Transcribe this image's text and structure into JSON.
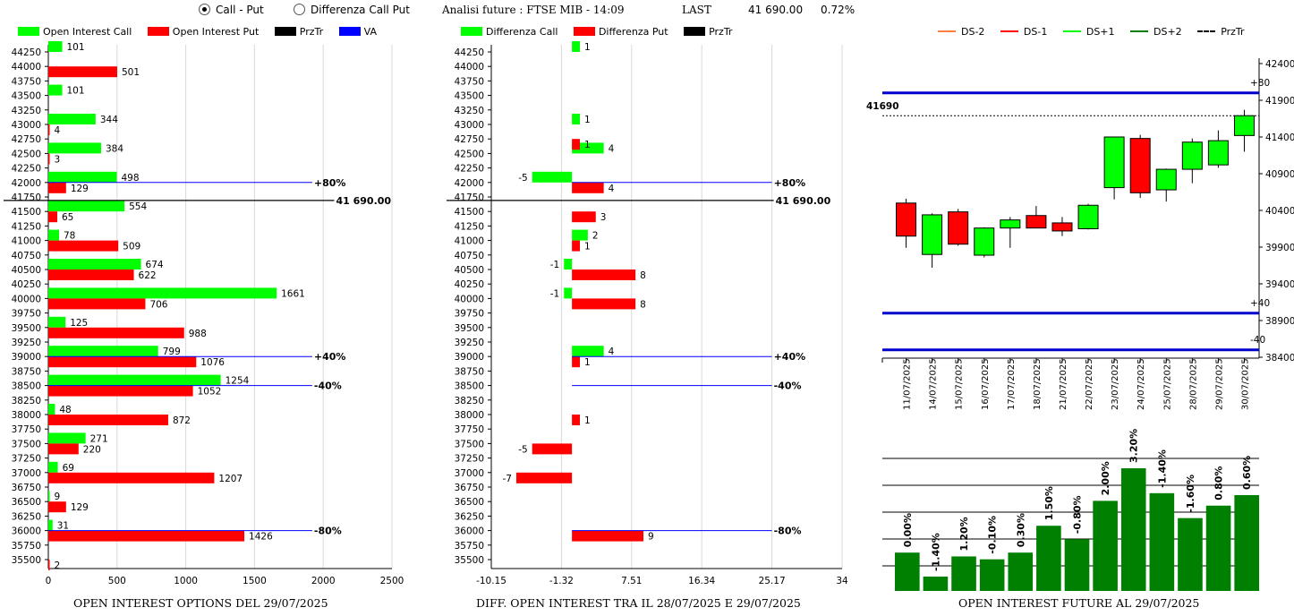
{
  "header": {
    "radio_call_put": "Call - Put",
    "radio_diff": "Differenza Call Put",
    "analysis_title": "Analisi future : FTSE MIB - 14:09",
    "last_label": "LAST",
    "last_value": "41 690.00",
    "last_pct": "0.72%"
  },
  "legend1": [
    {
      "label": "Open Interest Call",
      "color": "#00ff00"
    },
    {
      "label": "Open Interest Put",
      "color": "#ff0000"
    },
    {
      "label": "PrzTr",
      "color": "#000000"
    },
    {
      "label": "VA",
      "color": "#0000ff"
    }
  ],
  "legend2": [
    {
      "label": "Differenza Call",
      "color": "#00ff00"
    },
    {
      "label": "Differenza Put",
      "color": "#ff0000"
    },
    {
      "label": "PrzTr",
      "color": "#000000"
    }
  ],
  "legend3": [
    {
      "label": "DS-2",
      "color": "#ff8040",
      "style": "solid"
    },
    {
      "label": "DS-1",
      "color": "#ff0000",
      "style": "solid"
    },
    {
      "label": "DS+1",
      "color": "#00ff00",
      "style": "solid"
    },
    {
      "label": "DS+2",
      "color": "#008000",
      "style": "solid"
    },
    {
      "label": "PrzTr",
      "color": "#000000",
      "style": "dashed"
    }
  ],
  "footers": {
    "chart1": "OPEN INTEREST OPTIONS DEL 29/07/2025",
    "chart2": "DIFF. OPEN INTEREST TRA IL 28/07/2025 E 29/07/2025",
    "chart3": "OPEN INTEREST FUTURE AL 29/07/2025"
  },
  "chart_data": [
    {
      "type": "bar",
      "orientation": "horizontal",
      "strikes": [
        44250,
        44000,
        43750,
        43500,
        43250,
        43000,
        42750,
        42500,
        42250,
        42000,
        41750,
        41500,
        41250,
        41000,
        40750,
        40500,
        40250,
        40000,
        39750,
        39500,
        39250,
        39000,
        38750,
        38500,
        38250,
        38000,
        37750,
        37500,
        37250,
        37000,
        36750,
        36500,
        36250,
        36000,
        35750,
        35500
      ],
      "call": [
        {
          "strike": 44250,
          "value": 101
        },
        {
          "strike": 43500,
          "value": 101
        },
        {
          "strike": 43000,
          "value": 344
        },
        {
          "strike": 42500,
          "value": 384
        },
        {
          "strike": 42000,
          "value": 498
        },
        {
          "strike": 41500,
          "value": 554
        },
        {
          "strike": 41000,
          "value": 78
        },
        {
          "strike": 40500,
          "value": 674
        },
        {
          "strike": 40000,
          "value": 1661
        },
        {
          "strike": 39500,
          "value": 125
        },
        {
          "strike": 39000,
          "value": 799
        },
        {
          "strike": 38500,
          "value": 1254
        },
        {
          "strike": 38000,
          "value": 48
        },
        {
          "strike": 37500,
          "value": 271
        },
        {
          "strike": 37000,
          "value": 69
        },
        {
          "strike": 36500,
          "value": 9
        },
        {
          "strike": 36000,
          "value": 31
        }
      ],
      "put": [
        {
          "strike": 44000,
          "value": 501
        },
        {
          "strike": 43000,
          "value": 4
        },
        {
          "strike": 42500,
          "value": 3
        },
        {
          "strike": 42000,
          "value": 129
        },
        {
          "strike": 41500,
          "value": 65
        },
        {
          "strike": 41000,
          "value": 509
        },
        {
          "strike": 40500,
          "value": 622
        },
        {
          "strike": 40000,
          "value": 706
        },
        {
          "strike": 39500,
          "value": 988
        },
        {
          "strike": 39000,
          "value": 1076
        },
        {
          "strike": 38500,
          "value": 1052
        },
        {
          "strike": 38000,
          "value": 872
        },
        {
          "strike": 37500,
          "value": 220
        },
        {
          "strike": 37000,
          "value": 1207
        },
        {
          "strike": 36500,
          "value": 129
        },
        {
          "strike": 36000,
          "value": 1426
        },
        {
          "strike": 35500,
          "value": 2
        }
      ],
      "xticks": [
        "0",
        "500",
        "1000",
        "1500",
        "2000",
        "2500"
      ],
      "xlim": [
        0,
        2500
      ],
      "lines": [
        {
          "strike": 42000,
          "label": "+80%",
          "color": "#0000ff"
        },
        {
          "strike": 41690,
          "label": "41 690.00",
          "color": "#000000"
        },
        {
          "strike": 39000,
          "label": "+40%",
          "color": "#0000ff"
        },
        {
          "strike": 38500,
          "label": "-40%",
          "color": "#0000ff"
        },
        {
          "strike": 36000,
          "label": "-80%",
          "color": "#0000ff"
        }
      ]
    },
    {
      "type": "bar",
      "orientation": "horizontal",
      "strikes": [
        44250,
        44000,
        43750,
        43500,
        43250,
        43000,
        42750,
        42500,
        42250,
        42000,
        41750,
        41500,
        41250,
        41000,
        40750,
        40500,
        40250,
        40000,
        39750,
        39500,
        39250,
        39000,
        38750,
        38500,
        38250,
        38000,
        37750,
        37500,
        37250,
        37000,
        36750,
        36500,
        36250,
        36000,
        35750,
        35500
      ],
      "call_diff": [
        {
          "strike": 44250,
          "value": 1
        },
        {
          "strike": 43000,
          "value": 1
        },
        {
          "strike": 42500,
          "value": 4
        },
        {
          "strike": 42000,
          "value": -5
        },
        {
          "strike": 41000,
          "value": 2
        },
        {
          "strike": 40500,
          "value": -1
        },
        {
          "strike": 40000,
          "value": -1
        },
        {
          "strike": 39000,
          "value": 4
        }
      ],
      "put_diff": [
        {
          "strike": 42750,
          "value": 1
        },
        {
          "strike": 42000,
          "value": 4
        },
        {
          "strike": 41500,
          "value": 3
        },
        {
          "strike": 41000,
          "value": 1
        },
        {
          "strike": 40500,
          "value": 8
        },
        {
          "strike": 40000,
          "value": 8
        },
        {
          "strike": 39000,
          "value": 1
        },
        {
          "strike": 38000,
          "value": 1
        },
        {
          "strike": 37500,
          "value": -5
        },
        {
          "strike": 37000,
          "value": -7
        },
        {
          "strike": 36000,
          "value": 9
        }
      ],
      "xticks": [
        "-10.15",
        "-1.32",
        "7.51",
        "16.34",
        "25.17",
        "34"
      ],
      "xlim": [
        -10.15,
        34
      ],
      "lines": [
        {
          "strike": 42000,
          "label": "+80%",
          "color": "#0000ff"
        },
        {
          "strike": 41690,
          "label": "41 690.00",
          "color": "#000000"
        },
        {
          "strike": 39000,
          "label": "+40%",
          "color": "#0000ff"
        },
        {
          "strike": 38500,
          "label": "-40%",
          "color": "#0000ff"
        },
        {
          "strike": 36000,
          "label": "-80%",
          "color": "#0000ff"
        }
      ]
    },
    {
      "type": "candlestick",
      "dates": [
        "11/07/2025",
        "14/07/2025",
        "15/07/2025",
        "16/07/2025",
        "17/07/2025",
        "18/07/2025",
        "21/07/2025",
        "22/07/2025",
        "23/07/2025",
        "24/07/2025",
        "25/07/2025",
        "28/07/2025",
        "29/07/2025",
        "30/07/2025"
      ],
      "candles": [
        {
          "open": 40500,
          "close": 40050,
          "high": 40560,
          "low": 39890
        },
        {
          "open": 39800,
          "close": 40340,
          "high": 40360,
          "low": 39620
        },
        {
          "open": 40380,
          "close": 39940,
          "high": 40420,
          "low": 39920
        },
        {
          "open": 39790,
          "close": 40160,
          "high": 40170,
          "low": 39760
        },
        {
          "open": 40160,
          "close": 40270,
          "high": 40310,
          "low": 39890
        },
        {
          "open": 40330,
          "close": 40160,
          "high": 40460,
          "low": 40160
        },
        {
          "open": 40230,
          "close": 40120,
          "high": 40310,
          "low": 40050
        },
        {
          "open": 40150,
          "close": 40470,
          "high": 40490,
          "low": 40140
        },
        {
          "open": 40710,
          "close": 41400,
          "high": 41400,
          "low": 40550
        },
        {
          "open": 41380,
          "close": 40640,
          "high": 41430,
          "low": 40570
        },
        {
          "open": 40680,
          "close": 40960,
          "high": 40970,
          "low": 40520
        },
        {
          "open": 40960,
          "close": 41330,
          "high": 41380,
          "low": 40770
        },
        {
          "open": 41020,
          "close": 41350,
          "high": 41490,
          "low": 40980
        },
        {
          "open": 41420,
          "close": 41690,
          "high": 41770,
          "low": 41200
        }
      ],
      "yticks": [
        "42400",
        "41900",
        "41400",
        "40900",
        "40400",
        "39900",
        "39400",
        "38900",
        "38400"
      ],
      "ylim": [
        38400,
        42400
      ],
      "last_price": 41690,
      "last_label": "41690",
      "bands": [
        {
          "label": "+80",
          "value": 42000
        },
        {
          "label": "+40",
          "value": 39000
        },
        {
          "label": "-40",
          "value": 38500
        }
      ]
    },
    {
      "type": "bar",
      "series": [
        {
          "values": [
            40,
            15,
            36,
            33,
            40,
            68,
            54,
            94,
            128,
            102,
            76,
            89,
            100
          ]
        }
      ],
      "labels": [
        "0.00%",
        "-1.40%",
        "1.20%",
        "-0.10%",
        "0.30%",
        "1.50%",
        "-0.80%",
        "2.00%",
        "3.20%",
        "-1.40%",
        "-1.60%",
        "0.80%",
        "0.60%"
      ],
      "color": "#008000"
    }
  ]
}
